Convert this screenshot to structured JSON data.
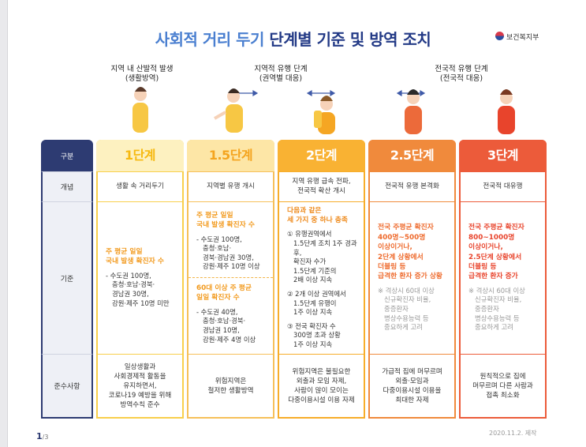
{
  "title": {
    "part1": "사회적 거리 두기",
    "part2": "단계별 기준 및 방역 조치"
  },
  "logo": "보건복지부",
  "phases": [
    {
      "lines": [
        "지역 내 산발적 발생",
        "(생활방역)"
      ]
    },
    {
      "lines": [
        "지역적 유행 단계",
        "(권역별 대응)"
      ]
    },
    {
      "lines": [
        "전국적 유행 단계",
        "(전국적 대응)"
      ]
    }
  ],
  "table": {
    "row_headers": [
      "구분",
      "개념",
      "기준",
      "준수사항"
    ],
    "columns": [
      {
        "stage": "1단계",
        "concept": [
          "생활 속 거리두기"
        ],
        "criteria": [
          {
            "style": "em",
            "lines": [
              "주 평균 일일",
              "국내 발생 확진자 수"
            ]
          },
          {
            "style": "normal",
            "lines": [
              "- 수도권 100명,",
              "충청·호남·경북·",
              "경남권 30명,",
              "강원·제주 10명 미만"
            ]
          }
        ],
        "compliance": [
          "일상생활과",
          "사회경제적 활동을",
          "유지하면서,",
          "코로나19 예방을 위해",
          "방역수칙 준수"
        ]
      },
      {
        "stage": "1.5단계",
        "concept": [
          "지역별 유행 개시"
        ],
        "criteria": [
          {
            "style": "em",
            "lines": [
              "주 평균 일일",
              "국내 발생 확진자 수"
            ]
          },
          {
            "style": "normal",
            "lines": [
              "- 수도권 100명,",
              "충청·호남·",
              "경북·경남권 30명,",
              "강원·제주 10명 이상"
            ]
          },
          {
            "style": "em",
            "lines": [
              "60대 이상 주 평균",
              "일일 확진자 수"
            ]
          },
          {
            "style": "normal",
            "lines": [
              "- 수도권 40명,",
              "충청·호남·경북·",
              "경남권 10명,",
              "강원·제주 4명 이상"
            ]
          }
        ],
        "compliance": [
          "위험지역은",
          "철저한 생활방역"
        ]
      },
      {
        "stage": "2단계",
        "concept": [
          "지역 유행 급속 전파,",
          "전국적 확산 개시"
        ],
        "criteria": [
          {
            "style": "em",
            "lines": [
              "다음과 같은",
              "세 가지 중 하나 충족"
            ]
          },
          {
            "style": "normal",
            "lines": [
              "① 유행권역에서",
              "1.5단계 조치 1주 경과 후,",
              "확진자 수가",
              "1.5단계 기준의",
              "2배 이상 지속"
            ]
          },
          {
            "style": "normal",
            "lines": [
              "② 2개 이상 권역에서",
              "1.5단계 유행이",
              "1주 이상 지속"
            ]
          },
          {
            "style": "normal",
            "lines": [
              "③ 전국 확진자 수",
              "300명 초과 상황",
              "1주 이상 지속"
            ]
          }
        ],
        "compliance": [
          "위험지역은 불필요한",
          "외출과 모임 자제,",
          "사람이 많이 모이는",
          "다중이용시설 이용 자제"
        ]
      },
      {
        "stage": "2.5단계",
        "concept": [
          "전국적 유행 본격화"
        ],
        "criteria": [
          {
            "style": "em",
            "lines": [
              "전국 주평균 확진자",
              "400명~500명",
              "이상이거나,",
              "2단계 상황에서",
              "더블링 등",
              "급격한 환자 증가 상황"
            ]
          },
          {
            "style": "note",
            "lines": [
              "※ 격상시 60대 이상",
              "신규확진자 비율,",
              "중증환자",
              "병상수용능력 등",
              "중요하게 고려"
            ]
          }
        ],
        "compliance": [
          "가급적 집에 머무르며",
          "외출·모임과",
          "다중이용시설 이용을",
          "최대한 자제"
        ]
      },
      {
        "stage": "3단계",
        "concept": [
          "전국적 대유행"
        ],
        "criteria": [
          {
            "style": "em",
            "lines": [
              "전국 주평균 확진자",
              "800~1000명",
              "이상이거나,",
              "2.5단계 상황에서",
              "더블링 등",
              "급격한 환자 증가"
            ]
          },
          {
            "style": "note",
            "lines": [
              "※ 격상시 60대 이상",
              "신규확진자 비율,",
              "중증환자",
              "병상수용능력 등",
              "중요하게 고려"
            ]
          }
        ],
        "compliance": [
          "원칙적으로 집에",
          "머무르며 다른 사람과",
          "접촉 최소화"
        ]
      }
    ]
  },
  "footer": {
    "page": "1",
    "total": "/3",
    "date": "2020.11.2. 제작"
  }
}
